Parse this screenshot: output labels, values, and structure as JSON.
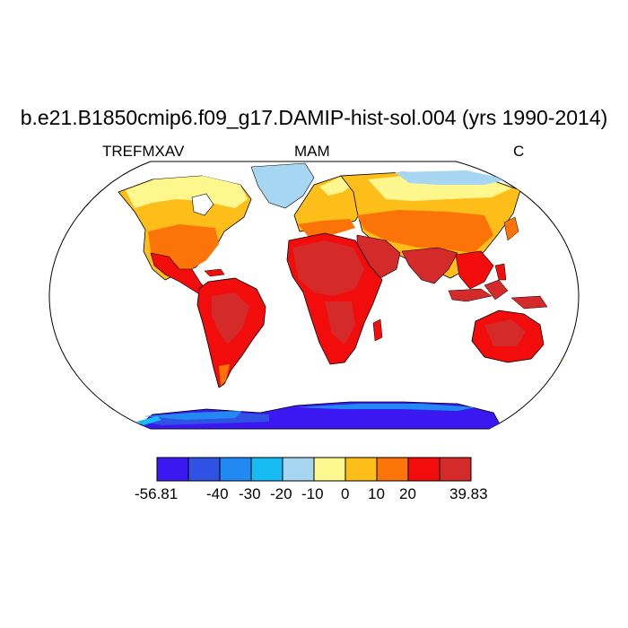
{
  "title": "b.e21.B1850cmip6.f09_g17.DAMIP-hist-sol.004 (yrs 1990-2014)",
  "left_string": "TREFMXAV",
  "center_string": "MAM",
  "right_string": "C",
  "colorbar": {
    "colors": [
      "#3b18f2",
      "#2f52e5",
      "#2389f2",
      "#18bcf5",
      "#a6d6f2",
      "#fdf78d",
      "#fdbe1a",
      "#fc7308",
      "#f20c0c",
      "#d42a2a"
    ],
    "labels": [
      "-56.81",
      "-40",
      "-30",
      "-20",
      "-10",
      "0",
      "10",
      "20",
      "39.83"
    ]
  },
  "colors": {
    "ocean": "#ffffff",
    "coast": "#000000",
    "antarctica": "#3b18f2"
  }
}
